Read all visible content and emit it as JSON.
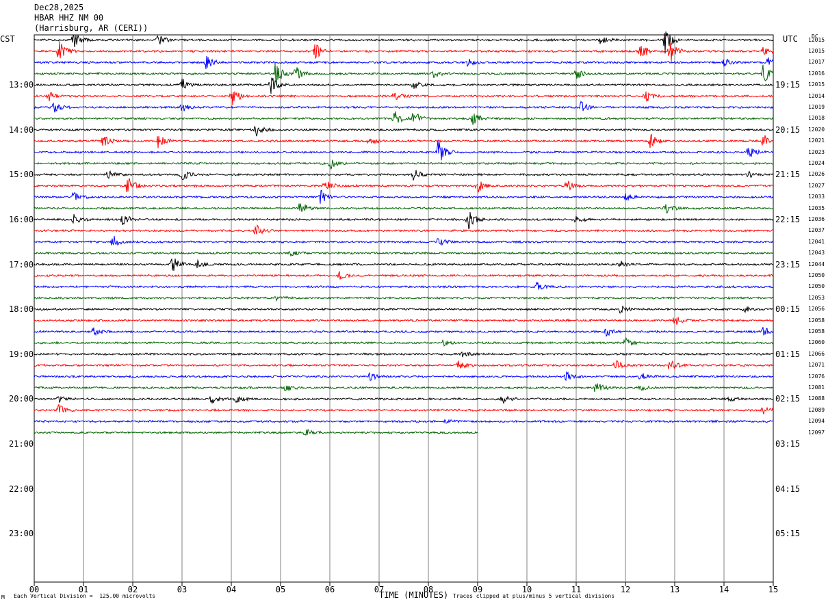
{
  "header": {
    "date": "Dec28,2025",
    "station": "HBAR HHZ NM 00",
    "location": "(Harrisburg, AR (CERI))"
  },
  "left_axis_title": "CST",
  "right_axis_title": "UTC",
  "dc_title": "DC",
  "footer": {
    "scale_note": "Each Vertical Division =  125.00 microvolts",
    "xlabel": "TIME (MINUTES)",
    "clip_note": "Traces clipped at plus/minus 5 vertical divisions",
    "corner_mark": "M"
  },
  "colors": {
    "black": "#000000",
    "red": "#ff0000",
    "blue": "#0000ff",
    "green": "#006400",
    "grid": "#808080"
  },
  "chart_data": {
    "type": "line",
    "title": "HBAR HHZ NM 00",
    "xlabel": "TIME (MINUTES)",
    "xlim": [
      0,
      15
    ],
    "x_ticks": [
      "00",
      "01",
      "02",
      "03",
      "04",
      "05",
      "06",
      "07",
      "08",
      "09",
      "10",
      "11",
      "12",
      "13",
      "14",
      "15"
    ],
    "hours_cst": [
      "13:00",
      "14:00",
      "15:00",
      "16:00",
      "17:00",
      "18:00",
      "19:00",
      "20:00",
      "21:00",
      "22:00",
      "23:00"
    ],
    "hours_utc": [
      "19:15",
      "20:15",
      "21:15",
      "22:15",
      "23:15",
      "00:15",
      "01:15",
      "02:15",
      "03:15",
      "04:15",
      "05:15"
    ],
    "trace_color_cycle": [
      "black",
      "red",
      "blue",
      "green"
    ],
    "dc_offsets": [
      "12015",
      "12015",
      "12017",
      "12016",
      "12015",
      "12014",
      "12019",
      "12018",
      "12020",
      "12021",
      "12023",
      "12024",
      "12026",
      "12027",
      "12033",
      "12035",
      "12036",
      "12037",
      "12041",
      "12043",
      "12044",
      "12050",
      "12050",
      "12053",
      "12056",
      "12058",
      "12058",
      "12060",
      "12066",
      "12071",
      "12076",
      "12081",
      "12088",
      "12089",
      "12094",
      "12097"
    ],
    "trace_count": 36,
    "last_trace_end_minute": 9.0,
    "events": [
      {
        "trace": 0,
        "minute": 0.8,
        "amp": 4
      },
      {
        "trace": 0,
        "minute": 2.5,
        "amp": 3
      },
      {
        "trace": 0,
        "minute": 11.5,
        "amp": 2
      },
      {
        "trace": 0,
        "minute": 12.8,
        "amp": 7
      },
      {
        "trace": 1,
        "minute": 0.5,
        "amp": 6
      },
      {
        "trace": 1,
        "minute": 5.7,
        "amp": 4
      },
      {
        "trace": 1,
        "minute": 12.3,
        "amp": 4
      },
      {
        "trace": 1,
        "minute": 12.9,
        "amp": 6
      },
      {
        "trace": 1,
        "minute": 14.8,
        "amp": 2
      },
      {
        "trace": 2,
        "minute": 3.5,
        "amp": 4
      },
      {
        "trace": 2,
        "minute": 8.8,
        "amp": 2
      },
      {
        "trace": 2,
        "minute": 14.0,
        "amp": 2
      },
      {
        "trace": 2,
        "minute": 14.9,
        "amp": 3
      },
      {
        "trace": 3,
        "minute": 4.9,
        "amp": 6
      },
      {
        "trace": 3,
        "minute": 5.3,
        "amp": 4
      },
      {
        "trace": 3,
        "minute": 8.1,
        "amp": 2
      },
      {
        "trace": 3,
        "minute": 11.0,
        "amp": 3
      },
      {
        "trace": 3,
        "minute": 14.8,
        "amp": 5
      },
      {
        "trace": 4,
        "minute": 3.0,
        "amp": 3
      },
      {
        "trace": 4,
        "minute": 4.8,
        "amp": 5
      },
      {
        "trace": 4,
        "minute": 7.7,
        "amp": 2
      },
      {
        "trace": 5,
        "minute": 0.3,
        "amp": 3
      },
      {
        "trace": 5,
        "minute": 4.0,
        "amp": 5
      },
      {
        "trace": 5,
        "minute": 7.3,
        "amp": 2
      },
      {
        "trace": 5,
        "minute": 12.4,
        "amp": 3
      },
      {
        "trace": 6,
        "minute": 0.4,
        "amp": 3
      },
      {
        "trace": 6,
        "minute": 3.0,
        "amp": 2
      },
      {
        "trace": 6,
        "minute": 11.1,
        "amp": 3
      },
      {
        "trace": 7,
        "minute": 7.3,
        "amp": 4
      },
      {
        "trace": 7,
        "minute": 7.7,
        "amp": 4
      },
      {
        "trace": 7,
        "minute": 8.9,
        "amp": 3
      },
      {
        "trace": 8,
        "minute": 4.5,
        "amp": 3
      },
      {
        "trace": 9,
        "minute": 1.4,
        "amp": 3
      },
      {
        "trace": 9,
        "minute": 2.5,
        "amp": 4
      },
      {
        "trace": 9,
        "minute": 6.8,
        "amp": 2
      },
      {
        "trace": 9,
        "minute": 12.5,
        "amp": 4
      },
      {
        "trace": 9,
        "minute": 14.8,
        "amp": 3
      },
      {
        "trace": 10,
        "minute": 8.2,
        "amp": 6
      },
      {
        "trace": 10,
        "minute": 14.5,
        "amp": 3
      },
      {
        "trace": 11,
        "minute": 6.0,
        "amp": 3
      },
      {
        "trace": 12,
        "minute": 1.5,
        "amp": 2
      },
      {
        "trace": 12,
        "minute": 3.0,
        "amp": 3
      },
      {
        "trace": 12,
        "minute": 7.7,
        "amp": 3
      },
      {
        "trace": 12,
        "minute": 14.5,
        "amp": 2
      },
      {
        "trace": 13,
        "minute": 1.9,
        "amp": 5
      },
      {
        "trace": 13,
        "minute": 5.9,
        "amp": 3
      },
      {
        "trace": 13,
        "minute": 9.0,
        "amp": 3
      },
      {
        "trace": 13,
        "minute": 10.8,
        "amp": 3
      },
      {
        "trace": 14,
        "minute": 0.8,
        "amp": 3
      },
      {
        "trace": 14,
        "minute": 5.8,
        "amp": 4
      },
      {
        "trace": 14,
        "minute": 12.0,
        "amp": 2
      },
      {
        "trace": 15,
        "minute": 5.4,
        "amp": 4
      },
      {
        "trace": 15,
        "minute": 12.8,
        "amp": 3
      },
      {
        "trace": 16,
        "minute": 0.8,
        "amp": 3
      },
      {
        "trace": 16,
        "minute": 1.8,
        "amp": 3
      },
      {
        "trace": 16,
        "minute": 8.8,
        "amp": 5
      },
      {
        "trace": 16,
        "minute": 11.0,
        "amp": 2
      },
      {
        "trace": 17,
        "minute": 4.5,
        "amp": 3
      },
      {
        "trace": 18,
        "minute": 1.6,
        "amp": 3
      },
      {
        "trace": 18,
        "minute": 8.2,
        "amp": 2
      },
      {
        "trace": 19,
        "minute": 5.2,
        "amp": 1.5
      },
      {
        "trace": 20,
        "minute": 2.8,
        "amp": 4
      },
      {
        "trace": 20,
        "minute": 3.3,
        "amp": 2
      },
      {
        "trace": 20,
        "minute": 11.9,
        "amp": 1.5
      },
      {
        "trace": 21,
        "minute": 6.2,
        "amp": 2
      },
      {
        "trace": 22,
        "minute": 10.2,
        "amp": 2
      },
      {
        "trace": 23,
        "minute": 4.9,
        "amp": 2
      },
      {
        "trace": 24,
        "minute": 11.9,
        "amp": 2
      },
      {
        "trace": 24,
        "minute": 14.4,
        "amp": 1.5
      },
      {
        "trace": 25,
        "minute": 13.0,
        "amp": 2.5
      },
      {
        "trace": 26,
        "minute": 1.2,
        "amp": 2
      },
      {
        "trace": 26,
        "minute": 11.6,
        "amp": 2.5
      },
      {
        "trace": 26,
        "minute": 14.8,
        "amp": 2
      },
      {
        "trace": 27,
        "minute": 8.3,
        "amp": 1.5
      },
      {
        "trace": 27,
        "minute": 12.0,
        "amp": 2
      },
      {
        "trace": 28,
        "minute": 8.7,
        "amp": 1.5
      },
      {
        "trace": 29,
        "minute": 8.6,
        "amp": 2.5
      },
      {
        "trace": 29,
        "minute": 11.8,
        "amp": 2.5
      },
      {
        "trace": 29,
        "minute": 12.9,
        "amp": 3
      },
      {
        "trace": 30,
        "minute": 6.8,
        "amp": 2
      },
      {
        "trace": 30,
        "minute": 10.8,
        "amp": 2
      },
      {
        "trace": 30,
        "minute": 12.3,
        "amp": 2
      },
      {
        "trace": 31,
        "minute": 5.1,
        "amp": 2
      },
      {
        "trace": 31,
        "minute": 11.4,
        "amp": 3
      },
      {
        "trace": 31,
        "minute": 12.3,
        "amp": 1.5
      },
      {
        "trace": 32,
        "minute": 0.5,
        "amp": 2
      },
      {
        "trace": 32,
        "minute": 3.6,
        "amp": 2.5
      },
      {
        "trace": 32,
        "minute": 4.1,
        "amp": 2
      },
      {
        "trace": 32,
        "minute": 9.5,
        "amp": 2
      },
      {
        "trace": 32,
        "minute": 14.1,
        "amp": 1.5
      },
      {
        "trace": 33,
        "minute": 0.5,
        "amp": 2.5
      },
      {
        "trace": 33,
        "minute": 14.8,
        "amp": 2
      },
      {
        "trace": 34,
        "minute": 8.3,
        "amp": 1.2
      },
      {
        "trace": 35,
        "minute": 5.5,
        "amp": 2
      }
    ]
  }
}
